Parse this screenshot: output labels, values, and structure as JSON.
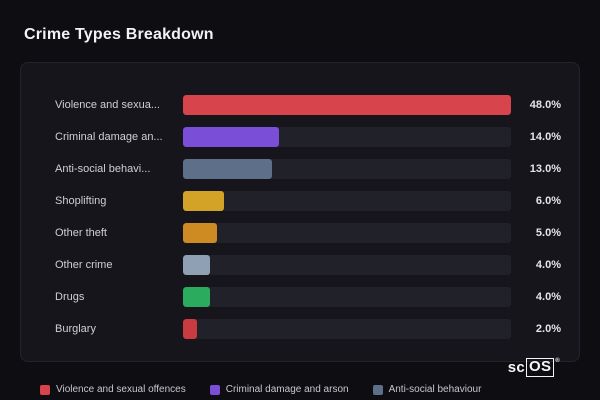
{
  "title": "Crime Types Breakdown",
  "watermark": {
    "prefix": "sc",
    "boxed": "OS",
    "mark": "®"
  },
  "chart_data": {
    "type": "bar",
    "orientation": "horizontal",
    "title": "Crime Types Breakdown",
    "categories": [
      "Violence and sexua...",
      "Criminal damage an...",
      "Anti-social behavi...",
      "Shoplifting",
      "Other theft",
      "Other crime",
      "Drugs",
      "Burglary"
    ],
    "values": [
      48.0,
      14.0,
      13.0,
      6.0,
      5.0,
      4.0,
      4.0,
      2.0
    ],
    "value_labels": [
      "48.0%",
      "14.0%",
      "13.0%",
      "6.0%",
      "5.0%",
      "4.0%",
      "4.0%",
      "2.0%"
    ],
    "bar_colors": [
      "#d8444c",
      "#7a4ed6",
      "#5e7089",
      "#d2a326",
      "#cd8b22",
      "#8fa0b4",
      "#2bab5d",
      "#c93a41"
    ],
    "max_value": 48.0,
    "xlabel": "",
    "ylabel": "",
    "grid": false,
    "legend_position": "bottom",
    "legend": [
      {
        "label": "Violence and sexual offences",
        "color": "#d8444c"
      },
      {
        "label": "Criminal damage and arson",
        "color": "#7a4ed6"
      },
      {
        "label": "Anti-social behaviour",
        "color": "#5e7089"
      }
    ]
  }
}
